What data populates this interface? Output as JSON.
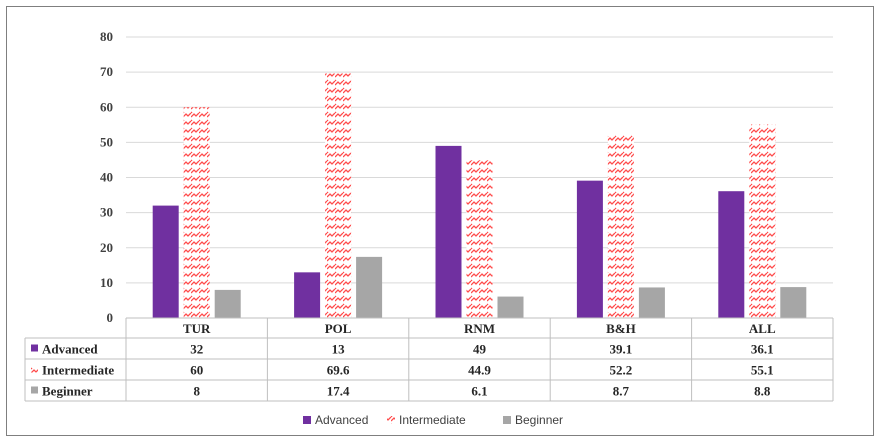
{
  "chart_data": {
    "type": "bar",
    "categories": [
      "TUR",
      "POL",
      "RNM",
      "B&H",
      "ALL"
    ],
    "series": [
      {
        "name": "Advanced",
        "values": [
          32,
          13,
          49,
          39.1,
          36.1
        ],
        "display": [
          "32",
          "13",
          "49",
          "39.1",
          "36.1"
        ],
        "color": "#7030a0",
        "pattern": "solid"
      },
      {
        "name": "Intermediate",
        "values": [
          60,
          69.6,
          44.9,
          52.2,
          55.1
        ],
        "display": [
          "60",
          "69.6",
          "44.9",
          "52.2",
          "55.1"
        ],
        "color": "#ff4b4b",
        "pattern": "zigzag"
      },
      {
        "name": "Beginner",
        "values": [
          8,
          17.4,
          6.1,
          8.7,
          8.8
        ],
        "display": [
          "8",
          "17.4",
          "6.1",
          "8.7",
          "8.8"
        ],
        "color": "#a6a6a6",
        "pattern": "solid"
      }
    ],
    "yticks": [
      "0",
      "10",
      "20",
      "30",
      "40",
      "50",
      "60",
      "70",
      "80"
    ],
    "ylim": [
      0,
      80
    ],
    "grid": true,
    "legend_position": "bottom",
    "data_table": true
  }
}
